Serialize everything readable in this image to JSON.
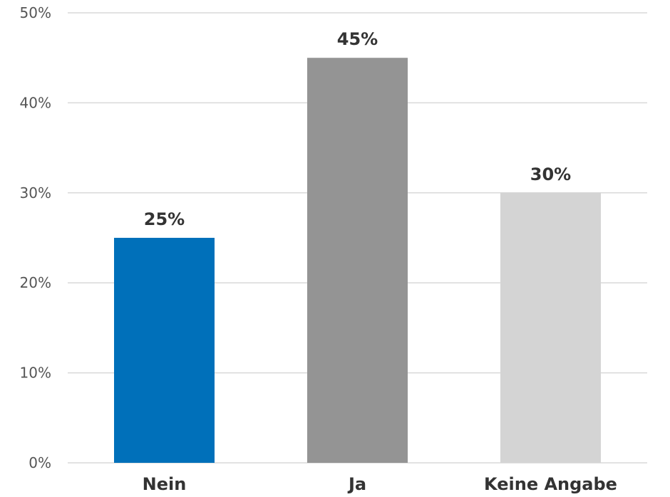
{
  "chart_data": {
    "type": "bar",
    "categories": [
      "Nein",
      "Ja",
      "Keine Angabe"
    ],
    "values": [
      25,
      45,
      30
    ],
    "data_labels": [
      "25%",
      "45%",
      "30%"
    ],
    "colors": [
      "#0070BA",
      "#949494",
      "#D4D4D4"
    ],
    "ylim": [
      0,
      50
    ],
    "yticks": [
      0,
      10,
      20,
      30,
      40,
      50
    ],
    "ytick_labels": [
      "0%",
      "10%",
      "20%",
      "30%",
      "40%",
      "50%"
    ],
    "grid": true,
    "title": "",
    "xlabel": "",
    "ylabel": ""
  }
}
